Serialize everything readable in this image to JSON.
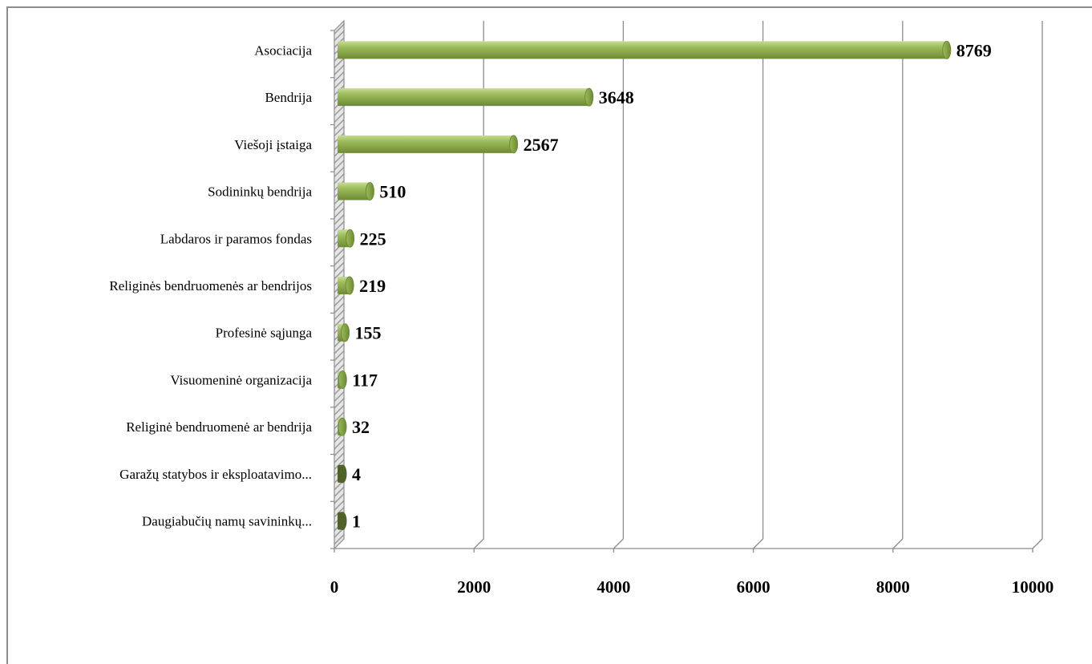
{
  "chart_data": {
    "type": "bar",
    "orientation": "horizontal",
    "style": "3d-cylinder",
    "categories": [
      "Asociacija",
      "Bendrija",
      "Viešoji įstaiga",
      "Sodininkų bendrija",
      "Labdaros ir paramos fondas",
      "Religinės bendruomenės ar bendrijos",
      "Profesinė sąjunga",
      "Visuomeninė organizacija",
      "Religinė bendruomenė ar bendrija",
      "Garažų statybos ir eksploatavimo...",
      "Daugiabučių namų savininkų..."
    ],
    "values": [
      8769,
      3648,
      2567,
      510,
      225,
      219,
      155,
      117,
      32,
      4,
      1
    ],
    "value_labels": [
      "8769",
      "3648",
      "2567",
      "510",
      "225",
      "219",
      "155",
      "117",
      "32",
      "4",
      "1"
    ],
    "xlim": [
      0,
      10000
    ],
    "x_ticks": [
      0,
      2000,
      4000,
      6000,
      8000,
      10000
    ],
    "x_tick_labels": [
      "0",
      "2000",
      "4000",
      "6000",
      "8000",
      "10000"
    ],
    "grid": true,
    "legend": false,
    "colors": {
      "bar": "#9bbb59",
      "bar_highlight": "#c9dc95",
      "bar_shadow": "#6e8a35",
      "bar_small": "#4f6228",
      "gridline": "#8c8c8c",
      "wall": "#bfbfbf"
    }
  }
}
